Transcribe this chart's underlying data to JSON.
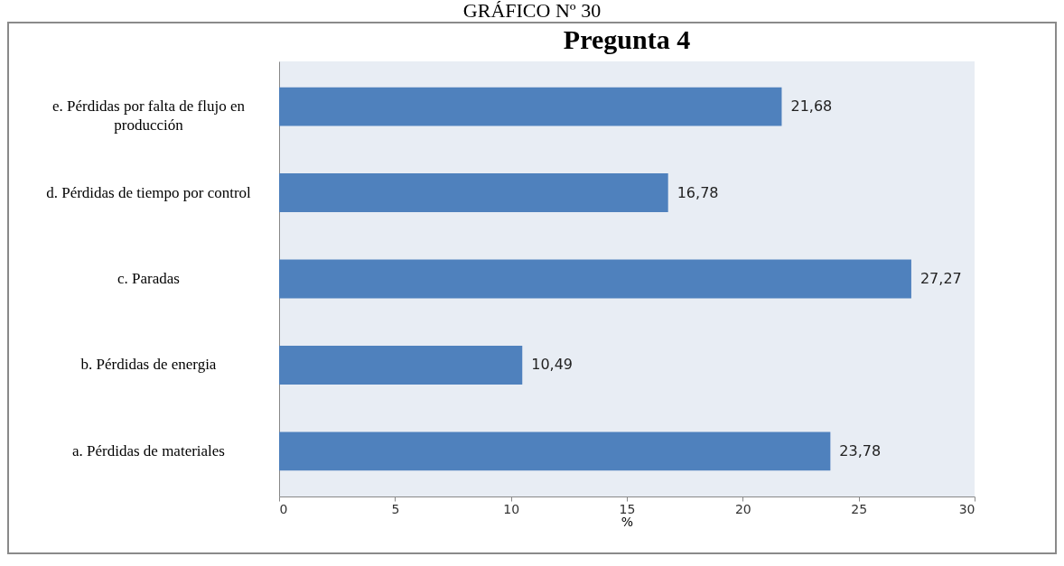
{
  "chart_data": {
    "type": "bar",
    "orientation": "horizontal",
    "title": "Pregunta 4",
    "annotations": [
      "GRÁFICO Nº 30"
    ],
    "xlabel": "%",
    "categories": [
      "e. Pérdidas por falta de flujo en producción",
      "d. Pérdidas de tiempo por control",
      "c. Paradas",
      "b. Pérdidas de energia",
      "a. Pérdidas de materiales"
    ],
    "values": [
      21.68,
      16.78,
      27.27,
      10.49,
      23.78
    ],
    "value_labels": [
      "21,68",
      "16,78",
      "27,27",
      "10,49",
      "23,78"
    ],
    "color": "#4f81bd",
    "xlim": [
      0,
      30
    ],
    "xticks": [
      0,
      5,
      10,
      15,
      20,
      25,
      30
    ],
    "grid": false
  }
}
